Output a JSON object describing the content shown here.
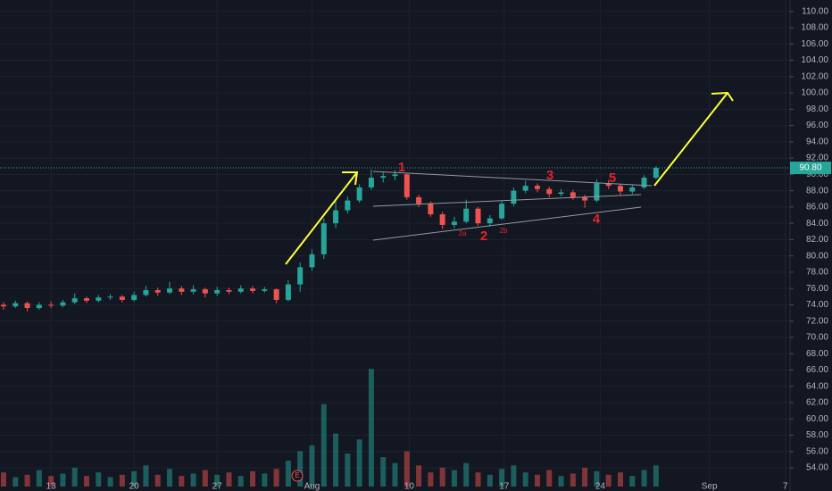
{
  "chart_data": {
    "type": "candlestick",
    "x": [
      9,
      10,
      11,
      12,
      13,
      14,
      15,
      16,
      17,
      18,
      19,
      20,
      21,
      22,
      23,
      24,
      25,
      26,
      27,
      28,
      29,
      30,
      31,
      32,
      33,
      34,
      35,
      36,
      37,
      38,
      39,
      40,
      41,
      42,
      43,
      44,
      45,
      46,
      47,
      48,
      49,
      50,
      51,
      52,
      53,
      54,
      55,
      56,
      57,
      58,
      59,
      60,
      61,
      62,
      63,
      64
    ],
    "open": [
      74.0,
      73.8,
      74.2,
      73.6,
      74.0,
      73.9,
      74.3,
      74.8,
      74.5,
      74.9,
      75.0,
      74.6,
      75.2,
      75.8,
      75.5,
      76.0,
      75.6,
      75.9,
      75.4,
      75.8,
      75.6,
      76.0,
      75.7,
      75.9,
      74.6,
      76.5,
      78.6,
      80.2,
      84.0,
      85.6,
      86.8,
      88.4,
      89.6,
      89.8,
      90.0,
      87.2,
      86.4,
      85.1,
      83.8,
      84.2,
      85.8,
      84.0,
      84.6,
      86.4,
      88.0,
      88.6,
      88.2,
      87.6,
      87.8,
      87.2,
      86.8,
      88.9,
      88.6,
      87.9,
      88.4,
      89.6
    ],
    "high": [
      74.3,
      74.5,
      74.4,
      74.3,
      74.4,
      74.6,
      75.4,
      75.0,
      75.2,
      75.3,
      75.2,
      75.6,
      76.3,
      76.1,
      76.8,
      76.3,
      76.4,
      76.1,
      76.2,
      76.1,
      76.4,
      76.3,
      76.2,
      76.0,
      77.0,
      79.2,
      80.8,
      84.6,
      86.9,
      87.3,
      88.8,
      90.6,
      90.3,
      90.5,
      90.2,
      87.5,
      86.7,
      85.4,
      84.8,
      86.9,
      86.0,
      85.0,
      86.8,
      88.4,
      89.2,
      88.9,
      88.5,
      88.2,
      88.1,
      87.5,
      89.4,
      89.3,
      88.8,
      88.7,
      89.9,
      91.0
    ],
    "low": [
      73.4,
      73.6,
      73.2,
      73.4,
      73.6,
      73.7,
      74.1,
      74.2,
      74.3,
      74.6,
      74.3,
      74.4,
      75.0,
      75.1,
      75.3,
      75.2,
      75.3,
      74.9,
      75.1,
      75.3,
      75.4,
      75.4,
      75.5,
      74.2,
      74.4,
      75.6,
      78.2,
      79.6,
      83.4,
      85.2,
      86.5,
      88.1,
      89.0,
      89.3,
      86.9,
      86.0,
      84.8,
      83.3,
      83.4,
      84.0,
      83.7,
      83.6,
      84.4,
      86.1,
      87.7,
      87.8,
      87.2,
      87.3,
      86.9,
      85.9,
      86.6,
      88.2,
      87.5,
      87.6,
      88.2,
      89.4
    ],
    "close": [
      73.8,
      74.2,
      73.6,
      74.0,
      73.9,
      74.3,
      74.8,
      74.5,
      74.9,
      75.0,
      74.6,
      75.2,
      75.8,
      75.5,
      76.0,
      75.6,
      75.9,
      75.4,
      75.8,
      75.6,
      76.0,
      75.7,
      75.9,
      74.6,
      76.5,
      78.6,
      80.2,
      84.0,
      85.6,
      86.8,
      88.4,
      89.6,
      89.8,
      90.0,
      87.2,
      86.4,
      85.1,
      83.8,
      84.2,
      85.8,
      84.0,
      84.6,
      86.4,
      88.0,
      88.6,
      88.2,
      87.6,
      87.8,
      87.2,
      86.8,
      88.9,
      88.6,
      87.9,
      88.4,
      89.6,
      90.8
    ],
    "volume": [
      12,
      8,
      10,
      14,
      9,
      11,
      16,
      9,
      12,
      8,
      10,
      13,
      18,
      10,
      15,
      9,
      11,
      14,
      10,
      12,
      9,
      13,
      11,
      15,
      22,
      30,
      35,
      70,
      45,
      28,
      40,
      100,
      25,
      20,
      30,
      18,
      12,
      16,
      14,
      20,
      12,
      10,
      15,
      18,
      12,
      10,
      14,
      9,
      11,
      16,
      13,
      10,
      12,
      9,
      14,
      18
    ],
    "vlim": [
      0,
      110
    ],
    "up_color": "#26a69a",
    "down_color": "#ef5350",
    "xlim": [
      8.7,
      75.3
    ],
    "xticks": [
      {
        "value": 13,
        "label": "13"
      },
      {
        "value": 20,
        "label": "20"
      },
      {
        "value": 27,
        "label": "27"
      },
      {
        "value": 35,
        "label": "Aug"
      },
      {
        "value": 43.2,
        "label": "10"
      },
      {
        "value": 51.2,
        "label": "17"
      },
      {
        "value": 59.3,
        "label": "24"
      },
      {
        "value": 68.5,
        "label": "Sep"
      },
      {
        "value": 74.9,
        "label": "7"
      }
    ],
    "ylim": [
      51.15,
      111.4
    ],
    "yticks": [
      {
        "value": 54,
        "label": "54.00"
      },
      {
        "value": 56,
        "label": "56.00"
      },
      {
        "value": 58,
        "label": "58.00"
      },
      {
        "value": 60,
        "label": "60.00"
      },
      {
        "value": 62,
        "label": "62.00"
      },
      {
        "value": 64,
        "label": "64.00"
      },
      {
        "value": 66,
        "label": "66.00"
      },
      {
        "value": 68,
        "label": "68.00"
      },
      {
        "value": 70,
        "label": "70.00"
      },
      {
        "value": 72,
        "label": "72.00"
      },
      {
        "value": 74,
        "label": "74.00"
      },
      {
        "value": 76,
        "label": "76.00"
      },
      {
        "value": 78,
        "label": "78.00"
      },
      {
        "value": 80,
        "label": "80.00"
      },
      {
        "value": 82,
        "label": "82.00"
      },
      {
        "value": 84,
        "label": "84.00"
      },
      {
        "value": 86,
        "label": "86.00"
      },
      {
        "value": 88,
        "label": "88.00"
      },
      {
        "value": 90,
        "label": "90.00"
      },
      {
        "value": 92,
        "label": "92.00"
      },
      {
        "value": 94,
        "label": "94.00"
      },
      {
        "value": 96,
        "label": "96.00"
      },
      {
        "value": 98,
        "label": "98.00"
      },
      {
        "value": 100,
        "label": "100.00"
      },
      {
        "value": 102,
        "label": "102.00"
      },
      {
        "value": 104,
        "label": "104.00"
      },
      {
        "value": 106,
        "label": "106.00"
      },
      {
        "value": 108,
        "label": "108.00"
      },
      {
        "value": 110,
        "label": "110.00"
      }
    ],
    "last_price": {
      "value": 90.8,
      "label": "90.80"
    },
    "annotations": [
      "1",
      "2",
      "3",
      "4",
      "5",
      "2a",
      "2b"
    ],
    "event_marker": "E"
  }
}
